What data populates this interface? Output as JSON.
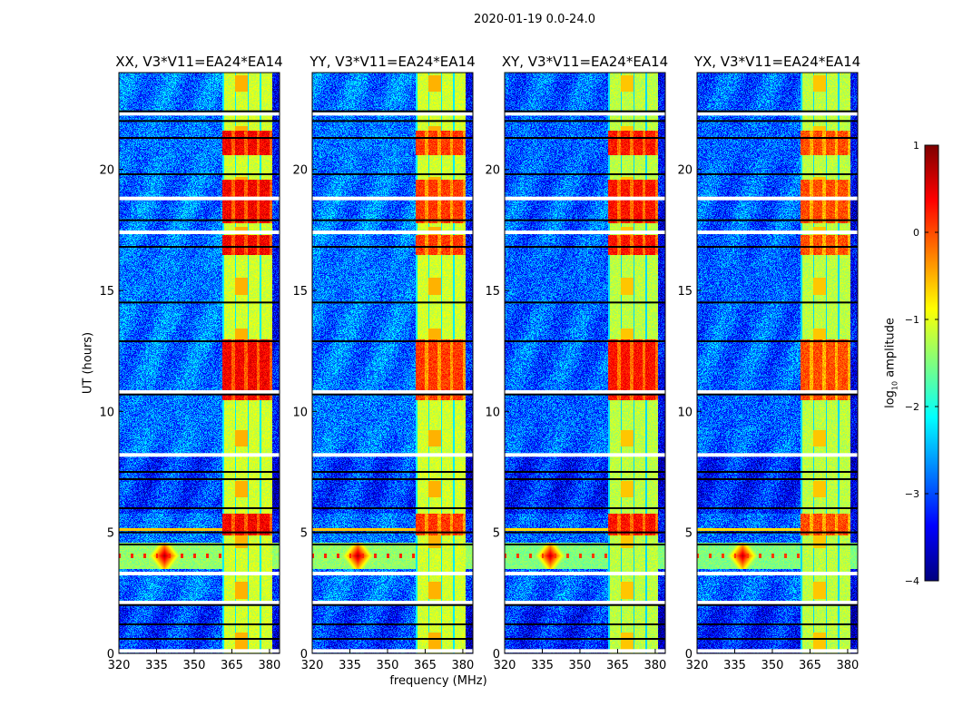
{
  "suptitle": "2020-01-19 0.0-24.0",
  "chart_data": [
    {
      "type": "heatmap",
      "panels": [
        {
          "title": "XX, V3*V11=EA24*EA14",
          "variant": 0
        },
        {
          "title": "YY, V3*V11=EA24*EA14",
          "variant": 1
        },
        {
          "title": "XY, V3*V11=EA24*EA14",
          "variant": 2
        },
        {
          "title": "YX, V3*V11=EA24*EA14",
          "variant": 3
        }
      ],
      "xlabel": "frequency (MHz)",
      "ylabel": "UT (hours)",
      "xlim": [
        320,
        384
      ],
      "ylim": [
        0,
        24
      ],
      "xticks": [
        "320",
        "335",
        "350",
        "365",
        "380"
      ],
      "xtick_values": [
        320,
        335,
        350,
        365,
        380
      ],
      "yticks": [
        "0",
        "5",
        "10",
        "15",
        "20"
      ],
      "ytick_values": [
        0,
        5,
        10,
        15,
        20
      ],
      "colormap": "jet",
      "rfi_band_mhz": [
        361,
        381
      ],
      "rfi_bright_hours": [
        [
          4.9,
          5.8
        ],
        [
          10.5,
          13
        ],
        [
          16.5,
          17.3
        ],
        [
          17.8,
          19.6
        ],
        [
          20.6,
          21.6
        ]
      ],
      "broadband_event_hours": [
        3.5,
        4.6
      ],
      "event_peak_mhz": 338,
      "flagged_hours_white": [
        0.1,
        2.1,
        3.3,
        8.2,
        10.8,
        17.4,
        18.8,
        22.3
      ],
      "flagged_hours_black": [
        0.6,
        1.2,
        2.0,
        4.5,
        5.0,
        6.0,
        7.2,
        7.5,
        10.7,
        12.9,
        14.5,
        16.8,
        17.9,
        19.8,
        21.3,
        22.0,
        22.4
      ],
      "colorbar": {
        "label_prefix": "log",
        "label_sub": "10",
        "label_suffix": " amplitude",
        "vmin": -4,
        "vmax": 1,
        "ticks": [
          "−4",
          "−3",
          "−2",
          "−1",
          "0",
          "1"
        ],
        "tick_values": [
          -4,
          -3,
          -2,
          -1,
          0,
          1
        ]
      }
    }
  ]
}
